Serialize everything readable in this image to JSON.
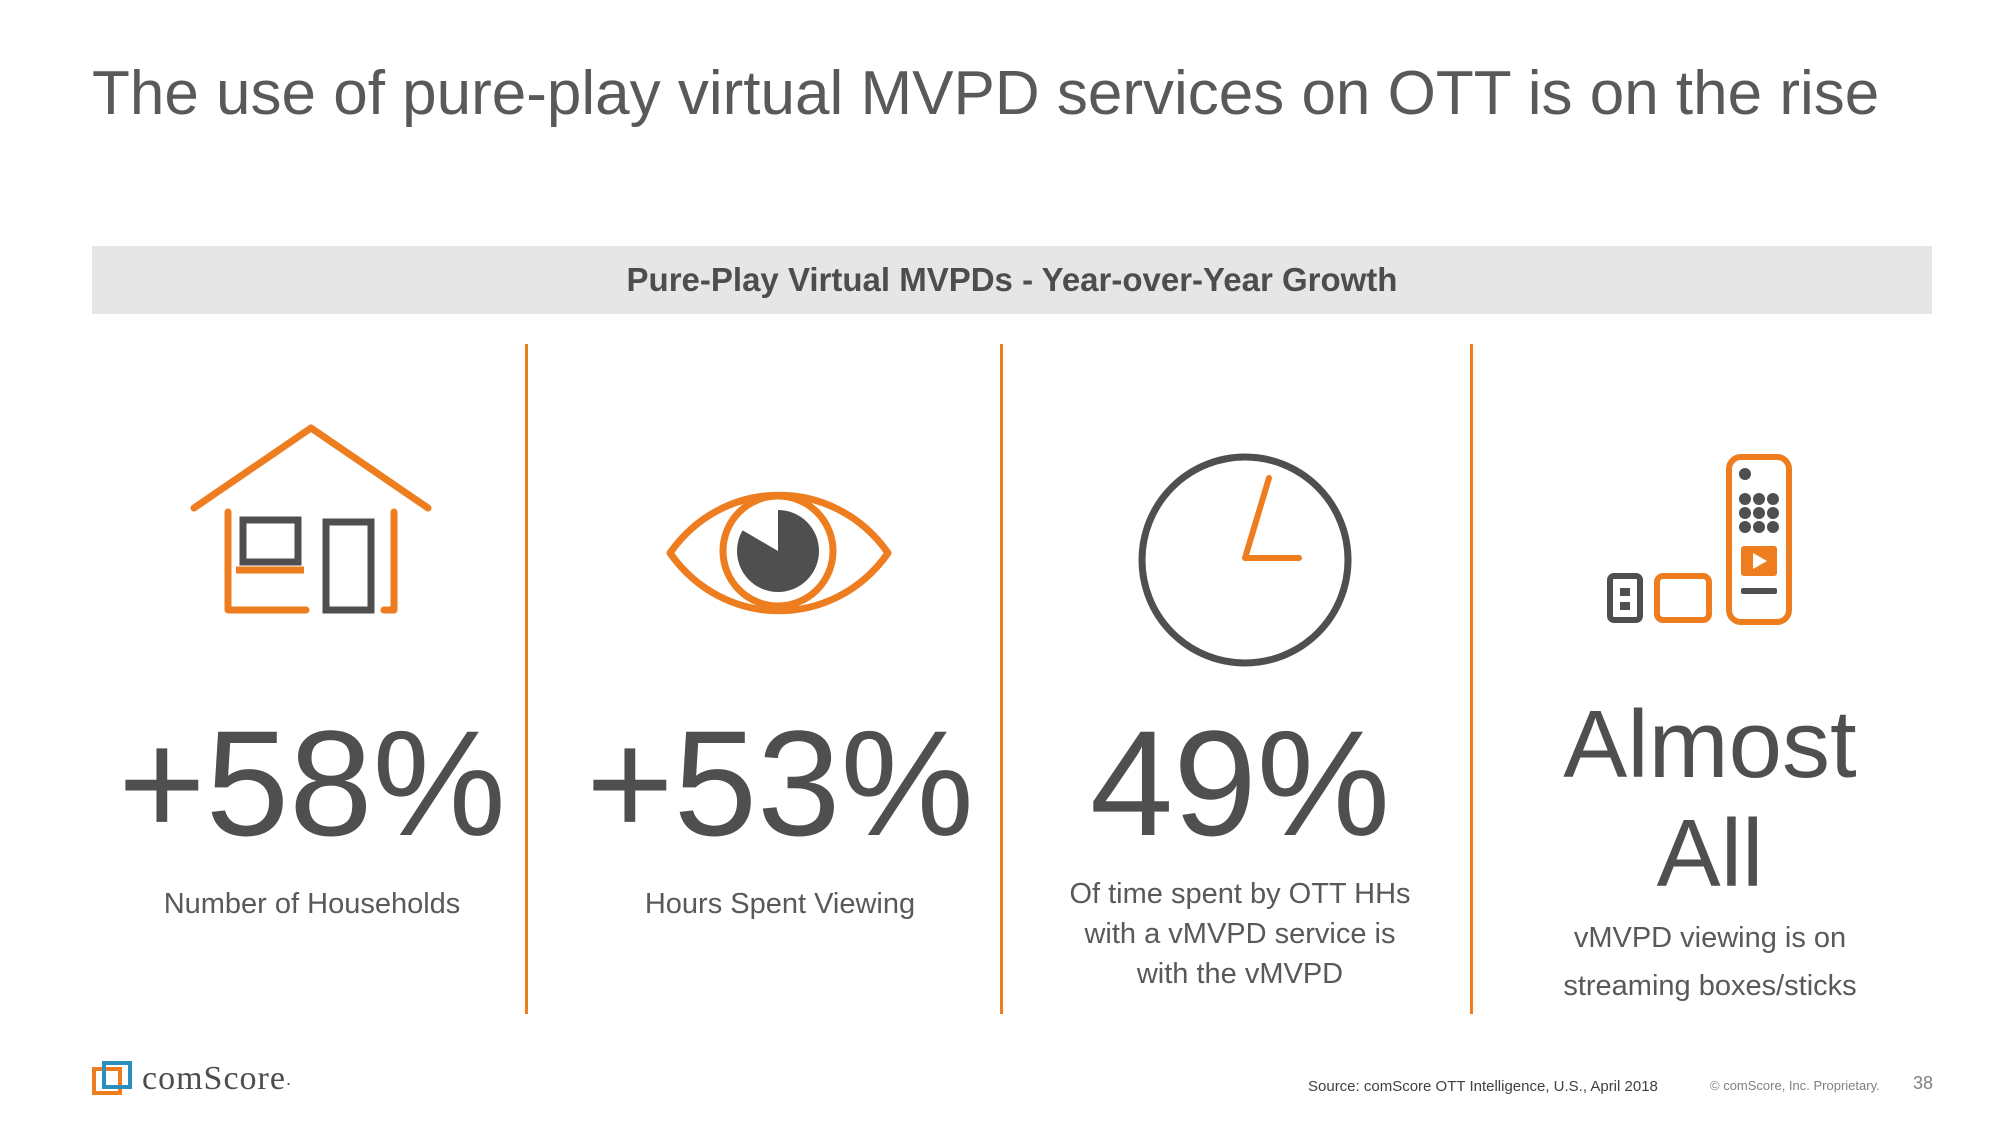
{
  "slide": {
    "title": "The use of pure-play virtual MVPD services on OTT is on the rise",
    "banner": "Pure-Play Virtual MVPDs - Year-over-Year Growth"
  },
  "stats": [
    {
      "icon": "house-icon",
      "value": "+58%",
      "label": "Number of Households"
    },
    {
      "icon": "eye-icon",
      "value": "+53%",
      "label": "Hours Spent Viewing"
    },
    {
      "icon": "clock-icon",
      "value": "49%",
      "label_lines": [
        "Of time spent by OTT HHs",
        "with a vMVPD service is",
        "with the vMVPD"
      ]
    },
    {
      "icon": "streaming-devices-icon",
      "value_lines": [
        "Almost",
        "All"
      ],
      "label_lines": [
        "vMVPD viewing is on",
        "streaming boxes/sticks"
      ]
    }
  ],
  "footer": {
    "logo_text": "comScore",
    "logo_registered": ".",
    "source": "Source: comScore OTT Intelligence, U.S., April 2018",
    "copyright": "© comScore, Inc. Proprietary.",
    "page_number": "38"
  },
  "colors": {
    "accent": "#ed7d1f",
    "text": "#595959",
    "banner_bg": "#e6e6e6"
  }
}
